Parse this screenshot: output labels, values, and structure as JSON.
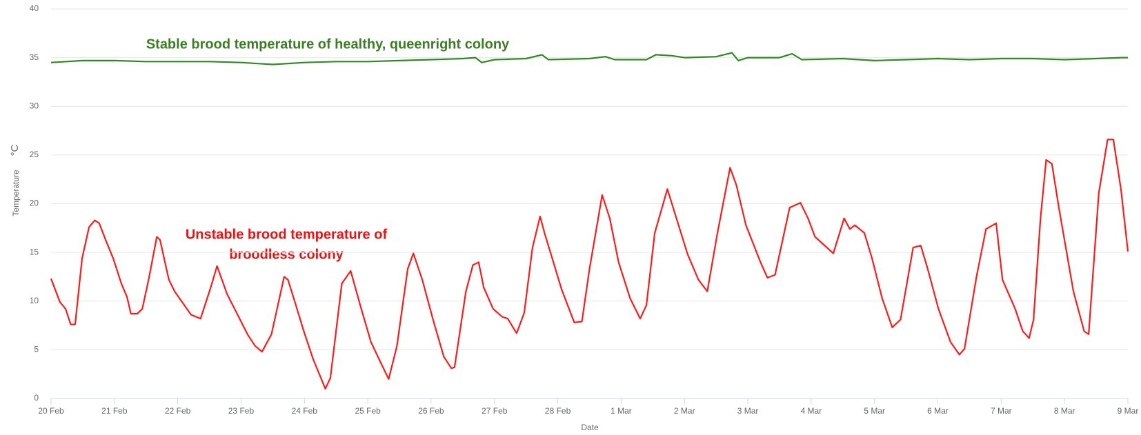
{
  "chart_data": {
    "type": "line",
    "x_label": "Date",
    "y_label": "Temperature",
    "y_unit": "°C",
    "xlim": [
      0,
      17
    ],
    "xticks": [
      {
        "value": 0,
        "label": "20 Feb"
      },
      {
        "value": 1,
        "label": "21 Feb"
      },
      {
        "value": 2,
        "label": "22 Feb"
      },
      {
        "value": 3,
        "label": "23 Feb"
      },
      {
        "value": 4,
        "label": "24 Feb"
      },
      {
        "value": 5,
        "label": "25 Feb"
      },
      {
        "value": 6,
        "label": "26 Feb"
      },
      {
        "value": 7,
        "label": "27 Feb"
      },
      {
        "value": 8,
        "label": "28 Feb"
      },
      {
        "value": 9,
        "label": "1 Mar"
      },
      {
        "value": 10,
        "label": "2 Mar"
      },
      {
        "value": 11,
        "label": "3 Mar"
      },
      {
        "value": 12,
        "label": "4 Mar"
      },
      {
        "value": 13,
        "label": "5 Mar"
      },
      {
        "value": 14,
        "label": "6 Mar"
      },
      {
        "value": 15,
        "label": "7 Mar"
      },
      {
        "value": 16,
        "label": "8 Mar"
      },
      {
        "value": 17,
        "label": "9 Mar"
      }
    ],
    "ylim": [
      0,
      40
    ],
    "yticks": [
      0,
      5,
      10,
      15,
      20,
      25,
      30,
      35,
      40
    ],
    "grid": true,
    "annotations": [
      {
        "text": "Stable brood temperature of healthy, queenright colony",
        "color": "#3a7d22"
      },
      {
        "text": "Unstable brood temperature of",
        "color": "#ee1111"
      },
      {
        "text": "broodless colony",
        "color": "#ee1111"
      }
    ],
    "series": [
      {
        "color": "#2e8b1f",
        "x": [
          0,
          0.5,
          1,
          1.5,
          2,
          2.5,
          3,
          3.5,
          4,
          4.5,
          5,
          5.5,
          6,
          6.5,
          6.7,
          6.8,
          7,
          7.5,
          7.75,
          7.85,
          8.5,
          8.75,
          8.9,
          9.4,
          9.55,
          9.8,
          10,
          10.5,
          10.75,
          10.85,
          11,
          11.5,
          11.7,
          11.85,
          12.5,
          13,
          13.5,
          14,
          14.5,
          15,
          15.5,
          16,
          16.5,
          16.9,
          17
        ],
        "values": [
          34.5,
          34.7,
          34.7,
          34.6,
          34.6,
          34.6,
          34.5,
          34.3,
          34.5,
          34.6,
          34.6,
          34.7,
          34.8,
          34.9,
          35.0,
          34.5,
          34.8,
          34.9,
          35.3,
          34.8,
          34.9,
          35.1,
          34.8,
          34.8,
          35.3,
          35.2,
          35.0,
          35.1,
          35.5,
          34.7,
          35.0,
          35.0,
          35.4,
          34.8,
          34.9,
          34.7,
          34.8,
          34.9,
          34.8,
          34.9,
          34.9,
          34.8,
          34.9,
          35.0,
          35.0
        ]
      },
      {
        "color": "#ff1a1a",
        "x": [
          0,
          0.14,
          0.23,
          0.31,
          0.38,
          0.49,
          0.6,
          0.69,
          0.76,
          0.86,
          0.98,
          1.11,
          1.2,
          1.26,
          1.36,
          1.44,
          1.54,
          1.67,
          1.72,
          1.86,
          1.95,
          2.07,
          2.21,
          2.36,
          2.52,
          2.62,
          2.78,
          2.93,
          3.1,
          3.22,
          3.33,
          3.48,
          3.68,
          3.74,
          3.85,
          3.99,
          4.14,
          4.26,
          4.33,
          4.41,
          4.59,
          4.73,
          4.88,
          5.05,
          5.21,
          5.33,
          5.46,
          5.63,
          5.72,
          5.86,
          6.03,
          6.2,
          6.32,
          6.37,
          6.55,
          6.66,
          6.75,
          6.83,
          6.98,
          7.12,
          7.21,
          7.35,
          7.47,
          7.6,
          7.72,
          7.79,
          7.93,
          8.06,
          8.26,
          8.38,
          8.5,
          8.7,
          8.82,
          8.96,
          9.14,
          9.3,
          9.4,
          9.53,
          9.73,
          9.82,
          10.05,
          10.22,
          10.36,
          10.52,
          10.72,
          10.82,
          10.97,
          11.2,
          11.31,
          11.43,
          11.66,
          11.83,
          11.95,
          12.06,
          12.35,
          12.52,
          12.61,
          12.69,
          12.84,
          12.96,
          13.12,
          13.28,
          13.41,
          13.61,
          13.73,
          13.84,
          14.01,
          14.2,
          14.34,
          14.42,
          14.61,
          14.76,
          14.92,
          15.02,
          15.22,
          15.34,
          15.44,
          15.51,
          15.62,
          15.71,
          15.8,
          15.91,
          16.14,
          16.31,
          16.38,
          16.54,
          16.68,
          16.77,
          16.89,
          17
        ],
        "values": [
          12.3,
          9.9,
          9.2,
          7.6,
          7.6,
          14.4,
          17.6,
          18.3,
          18.0,
          16.3,
          14.4,
          11.8,
          10.4,
          8.7,
          8.7,
          9.2,
          12.2,
          16.6,
          16.3,
          12.2,
          11.0,
          9.9,
          8.6,
          8.2,
          11.4,
          13.6,
          10.7,
          8.8,
          6.6,
          5.4,
          4.8,
          6.6,
          12.5,
          12.2,
          9.9,
          6.9,
          4.0,
          2.1,
          1.0,
          2.1,
          11.8,
          13.1,
          9.6,
          5.8,
          3.6,
          2.0,
          5.4,
          13.3,
          14.9,
          12.2,
          8.1,
          4.3,
          3.1,
          3.2,
          11.0,
          13.7,
          14.0,
          11.4,
          9.2,
          8.4,
          8.2,
          6.7,
          8.8,
          15.5,
          18.7,
          17.0,
          14.0,
          11.2,
          7.8,
          7.9,
          13.3,
          20.9,
          18.5,
          14.0,
          10.3,
          8.2,
          9.6,
          17.0,
          21.5,
          19.6,
          14.8,
          12.2,
          11.0,
          17.0,
          23.7,
          21.9,
          17.8,
          14.0,
          12.4,
          12.7,
          19.6,
          20.1,
          18.5,
          16.6,
          14.9,
          18.5,
          17.4,
          17.8,
          17.0,
          14.4,
          10.3,
          7.3,
          8.1,
          15.5,
          15.7,
          13.3,
          9.2,
          5.8,
          4.5,
          5.1,
          12.5,
          17.4,
          18.0,
          12.2,
          9.2,
          6.9,
          6.2,
          8.1,
          18.5,
          24.5,
          24.1,
          19.6,
          11.0,
          6.9,
          6.6,
          21.1,
          26.6,
          26.6,
          21.5,
          15.1
        ]
      }
    ]
  }
}
